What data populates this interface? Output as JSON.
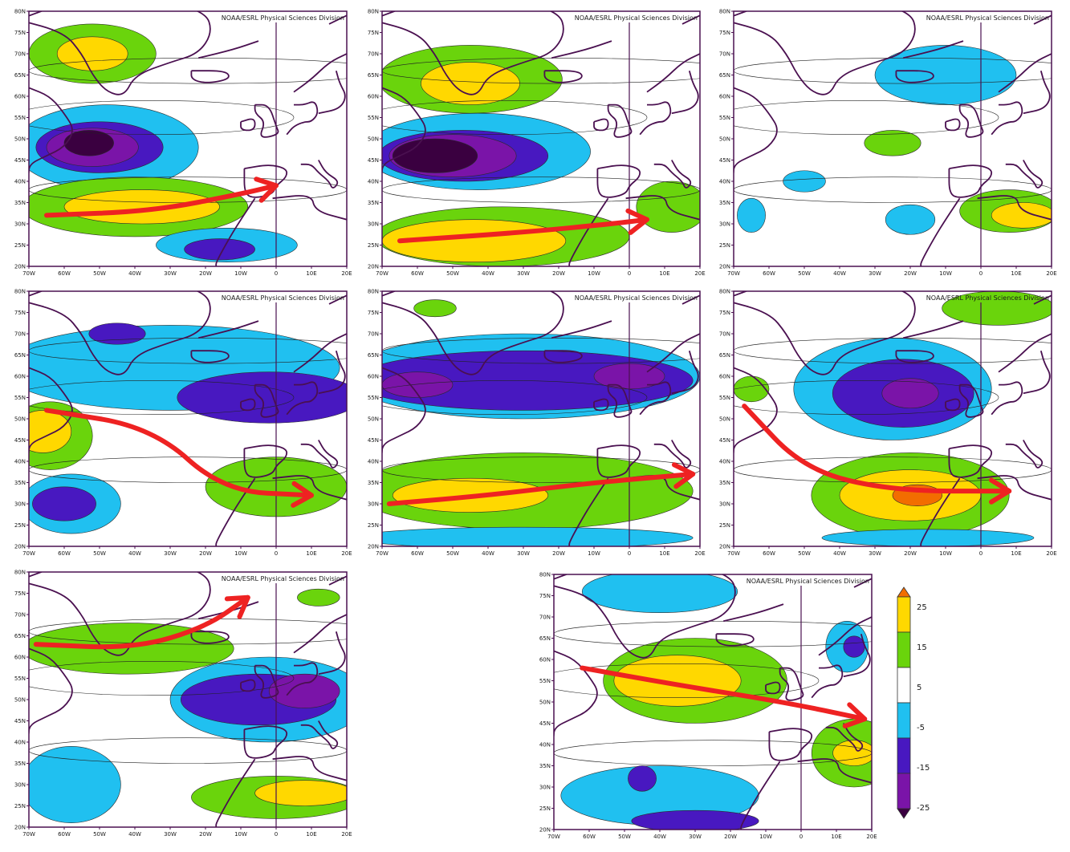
{
  "credit_text": "NOAA/ESRL Physical Sciences Division",
  "lat_ticks": [
    "80N",
    "75N",
    "70N",
    "65N",
    "60N",
    "55N",
    "50N",
    "45N",
    "40N",
    "35N",
    "30N",
    "25N",
    "20N"
  ],
  "lon_ticks": [
    "70W",
    "60W",
    "50W",
    "40W",
    "30W",
    "20W",
    "10W",
    "0",
    "10E",
    "20E"
  ],
  "colors": {
    "neg25": "#3a0040",
    "neg20": "#7a14a8",
    "neg15": "#4818c0",
    "neg5": "#20c0f0",
    "pos5": "#6ad40c",
    "pos15": "#ffd800",
    "pos25": "#f26d00",
    "arrow": "#ee2222",
    "coast": "#4a1050",
    "frame": "#4a1050"
  },
  "colorbar": {
    "labels": [
      "25",
      "15",
      "5",
      "-5",
      "-15",
      "-25"
    ],
    "levels": [
      "pos25",
      "pos15",
      "pos5",
      "white",
      "neg5",
      "neg15",
      "neg20",
      "neg25"
    ]
  },
  "panels": [
    {
      "id": "p1",
      "blobs": [
        [
          "pos5",
          -52,
          70,
          18,
          7
        ],
        [
          "pos15",
          -52,
          70,
          10,
          4
        ],
        [
          "neg5",
          -48,
          48,
          26,
          10
        ],
        [
          "neg15",
          -50,
          48,
          18,
          6
        ],
        [
          "neg20",
          -52,
          48,
          13,
          4.5
        ],
        [
          "neg25",
          -53,
          49,
          7,
          3
        ],
        [
          "pos5",
          -40,
          34,
          32,
          7
        ],
        [
          "pos15",
          -38,
          34,
          22,
          4
        ],
        [
          "neg5",
          -14,
          25,
          20,
          4
        ],
        [
          "neg15",
          -16,
          24,
          10,
          2.5
        ]
      ],
      "arrow": [
        [
          -65,
          32
        ],
        [
          -35,
          33
        ],
        [
          -10,
          37
        ],
        [
          0,
          39
        ]
      ]
    },
    {
      "id": "p2",
      "blobs": [
        [
          "pos5",
          -45,
          64,
          26,
          8
        ],
        [
          "pos15",
          -45,
          63,
          14,
          5
        ],
        [
          "neg5",
          -43,
          47,
          32,
          9
        ],
        [
          "neg15",
          -47,
          46,
          24,
          6
        ],
        [
          "neg20",
          -50,
          46,
          18,
          5
        ],
        [
          "neg25",
          -55,
          46,
          12,
          4
        ],
        [
          "pos5",
          -36,
          27,
          36,
          7
        ],
        [
          "pos15",
          -44,
          26,
          26,
          5
        ],
        [
          "pos5",
          12,
          34,
          10,
          6
        ]
      ],
      "arrow": [
        [
          -65,
          26
        ],
        [
          -30,
          28
        ],
        [
          -5,
          30
        ],
        [
          5,
          31
        ]
      ]
    },
    {
      "id": "p3",
      "blobs": [
        [
          "neg5",
          -10,
          65,
          20,
          7
        ],
        [
          "pos5",
          -25,
          49,
          8,
          3
        ],
        [
          "neg5",
          -50,
          40,
          6,
          2.5
        ],
        [
          "neg5",
          -20,
          31,
          7,
          3.5
        ],
        [
          "neg5",
          -65,
          32,
          4,
          4
        ],
        [
          "pos5",
          8,
          33,
          14,
          5
        ],
        [
          "pos15",
          12,
          32,
          9,
          3
        ]
      ],
      "arrow": null
    },
    {
      "id": "p4",
      "blobs": [
        [
          "neg5",
          -30,
          62,
          48,
          10
        ],
        [
          "neg15",
          -45,
          70,
          8,
          2.5
        ],
        [
          "neg15",
          -2,
          55,
          26,
          6
        ],
        [
          "pos5",
          -64,
          46,
          12,
          8
        ],
        [
          "pos15",
          -66,
          47,
          8,
          5
        ],
        [
          "neg5",
          -58,
          30,
          14,
          7
        ],
        [
          "neg15",
          -60,
          30,
          9,
          4
        ],
        [
          "pos5",
          0,
          34,
          20,
          7
        ]
      ],
      "arrow": [
        [
          -65,
          52
        ],
        [
          -35,
          48
        ],
        [
          -15,
          33
        ],
        [
          10,
          32
        ]
      ]
    },
    {
      "id": "p5",
      "blobs": [
        [
          "neg5",
          -30,
          60,
          50,
          10
        ],
        [
          "neg15",
          -30,
          59,
          48,
          7
        ],
        [
          "neg20",
          -60,
          58,
          10,
          3
        ],
        [
          "neg20",
          0,
          60,
          10,
          3
        ],
        [
          "pos5",
          -30,
          33,
          48,
          9
        ],
        [
          "pos15",
          -45,
          32,
          22,
          4
        ],
        [
          "neg5",
          -30,
          22,
          48,
          2.5
        ],
        [
          "pos5",
          -55,
          76,
          6,
          2
        ]
      ],
      "arrow": [
        [
          -68,
          30
        ],
        [
          -40,
          32
        ],
        [
          -10,
          35
        ],
        [
          18,
          37
        ]
      ]
    },
    {
      "id": "p6",
      "blobs": [
        [
          "neg5",
          -25,
          57,
          28,
          12
        ],
        [
          "neg15",
          -22,
          56,
          20,
          8
        ],
        [
          "neg20",
          -20,
          56,
          8,
          3.5
        ],
        [
          "pos5",
          -65,
          57,
          5,
          3
        ],
        [
          "pos5",
          -20,
          32,
          28,
          10
        ],
        [
          "pos15",
          -20,
          32,
          20,
          6
        ],
        [
          "pos25",
          -18,
          32,
          7,
          2.5
        ],
        [
          "pos5",
          5,
          76,
          16,
          4
        ],
        [
          "neg5",
          -15,
          22,
          30,
          2
        ]
      ],
      "arrow": [
        [
          -67,
          53
        ],
        [
          -50,
          38
        ],
        [
          -25,
          33
        ],
        [
          8,
          33
        ]
      ]
    },
    {
      "id": "p7",
      "blobs": [
        [
          "pos5",
          -42,
          62,
          30,
          6
        ],
        [
          "neg5",
          -2,
          50,
          28,
          10
        ],
        [
          "neg15",
          -5,
          50,
          22,
          6
        ],
        [
          "neg20",
          8,
          52,
          10,
          4
        ],
        [
          "neg5",
          -58,
          30,
          14,
          9
        ],
        [
          "pos5",
          0,
          27,
          24,
          5
        ],
        [
          "pos15",
          8,
          28,
          14,
          3
        ],
        [
          "pos5",
          12,
          74,
          6,
          2
        ]
      ],
      "arrow": [
        [
          -68,
          63
        ],
        [
          -40,
          62
        ],
        [
          -20,
          67
        ],
        [
          -8,
          74
        ]
      ]
    },
    {
      "id": "p8",
      "blobs": [
        [
          "neg5",
          -40,
          76,
          22,
          5
        ],
        [
          "pos5",
          -30,
          55,
          26,
          10
        ],
        [
          "pos15",
          -35,
          55,
          18,
          6
        ],
        [
          "neg5",
          -40,
          28,
          28,
          7
        ],
        [
          "neg15",
          -45,
          32,
          4,
          3
        ],
        [
          "neg15",
          -30,
          22,
          18,
          2.5
        ],
        [
          "pos5",
          15,
          38,
          12,
          8
        ],
        [
          "pos15",
          15,
          38,
          6,
          3
        ],
        [
          "neg5",
          13,
          63,
          6,
          6
        ],
        [
          "neg15",
          15,
          63,
          3,
          2.5
        ]
      ],
      "arrow": [
        [
          -62,
          58
        ],
        [
          -35,
          54
        ],
        [
          -5,
          50
        ],
        [
          18,
          46
        ]
      ]
    }
  ]
}
